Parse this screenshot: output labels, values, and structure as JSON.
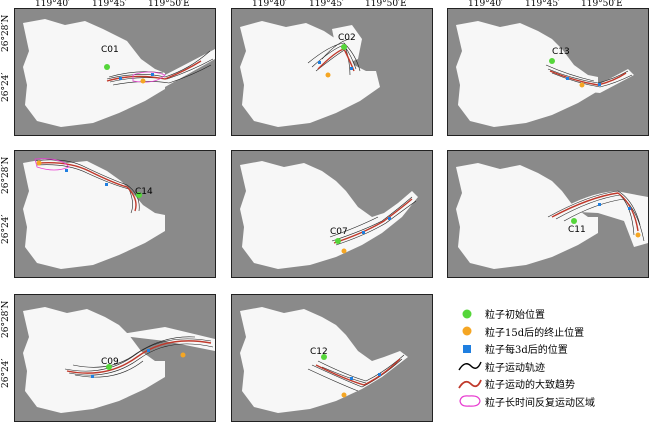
{
  "axes": {
    "x_ticks": [
      "119°40′",
      "119°45′",
      "119°50′E"
    ],
    "y_ticks": [
      "26°28′N",
      "26°24′"
    ]
  },
  "panels": [
    {
      "station": "C01"
    },
    {
      "station": "C02"
    },
    {
      "station": "C13"
    },
    {
      "station": "C14"
    },
    {
      "station": "C07"
    },
    {
      "station": "C11"
    },
    {
      "station": "C09"
    },
    {
      "station": "C12"
    }
  ],
  "legend": [
    {
      "label": "粒子初始位置",
      "color": "#55d63a",
      "icon": "green-dot"
    },
    {
      "label": "粒子15d后的终止位置",
      "color": "#f5a623",
      "icon": "orange-dot"
    },
    {
      "label": "粒子每3d后的位置",
      "color": "#1f7fe0",
      "icon": "blue-square"
    },
    {
      "label": "粒子运动轨迹",
      "color": "#000000",
      "icon": "black-curve"
    },
    {
      "label": "粒子运动的大致趋势",
      "color": "#c0392b",
      "icon": "red-curve"
    },
    {
      "label": "粒子长时间反复运动区域",
      "color": "#e83fd1",
      "icon": "magenta-loop"
    }
  ],
  "colors": {
    "land": "#8a8a8a",
    "water": "#f7f7f7",
    "trajectory": "#222222",
    "trend": "#c0392b",
    "recurrent": "#e83fd1"
  }
}
